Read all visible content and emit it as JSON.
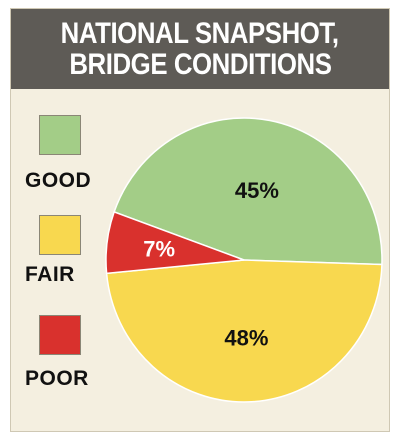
{
  "header": {
    "line1": "NATIONAL SNAPSHOT,",
    "line2": "BRIDGE CONDITIONS"
  },
  "legend": [
    {
      "label": "GOOD",
      "color": "#a3cd87"
    },
    {
      "label": "FAIR",
      "color": "#f8d84f"
    },
    {
      "label": "POOR",
      "color": "#d9312d"
    }
  ],
  "chart_data": {
    "type": "pie",
    "title": "NATIONAL SNAPSHOT, BRIDGE CONDITIONS",
    "categories": [
      "GOOD",
      "FAIR",
      "POOR"
    ],
    "values": [
      45,
      48,
      7
    ],
    "value_labels": [
      "45%",
      "48%",
      "7%"
    ],
    "colors": [
      "#a3cd87",
      "#f8d84f",
      "#d9312d"
    ],
    "legend_position": "left"
  }
}
